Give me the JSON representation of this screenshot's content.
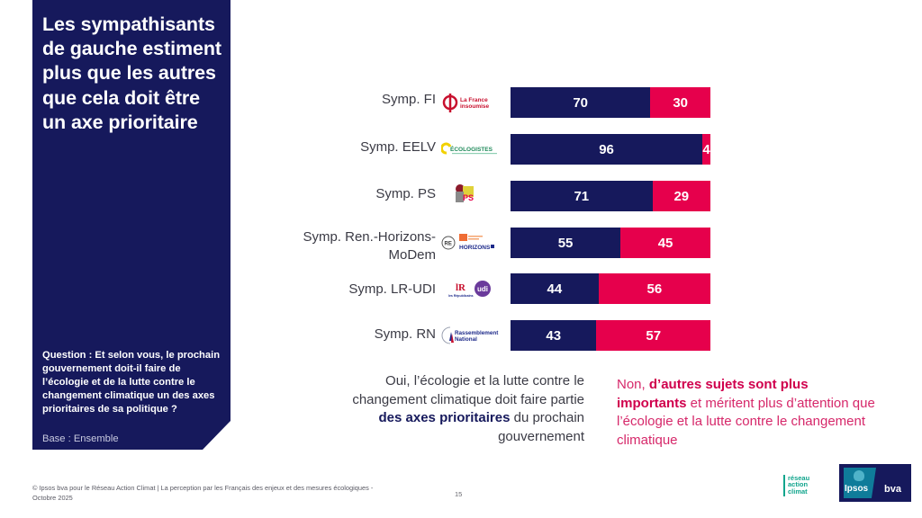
{
  "panel": {
    "title": "Les sympathisants de gauche estiment plus que les autres que cela doit être un axe prioritaire",
    "question": "Question : Et selon vous, le prochain gouvernement doit-il faire de l’écologie et de la lutte contre le changement climatique un des axes prioritaires de sa politique ?",
    "base": "Base : Ensemble"
  },
  "colors": {
    "navy": "#16195c",
    "pink": "#e6004c"
  },
  "chart_data": {
    "type": "bar",
    "orientation": "horizontal",
    "stacked": true,
    "title": "Les sympathisants de gauche estiment plus que les autres que cela doit être un axe prioritaire",
    "xlabel": "",
    "ylabel": "",
    "xlim": [
      0,
      100
    ],
    "grid": false,
    "categories": [
      "Symp. FI",
      "Symp. EELV",
      "Symp. PS",
      "Symp. Ren.-Horizons-MoDem",
      "Symp. LR-UDI",
      "Symp. RN"
    ],
    "category_logos": [
      "la-france-insoumise-logo",
      "les-ecologistes-logo",
      "ps-logo",
      "renaissance-horizons-modem-logo",
      "lr-udi-logo",
      "rassemblement-national-logo"
    ],
    "series": [
      {
        "name": "Oui, l’écologie et la lutte contre le changement climatique doit faire partie des axes prioritaires du prochain gouvernement",
        "color": "#16195c",
        "values": [
          70,
          96,
          71,
          55,
          44,
          43
        ]
      },
      {
        "name": "Non, d’autres sujets sont plus importants et méritent plus d’attention que l’écologie et la lutte contre le changement climatique",
        "color": "#e6004c",
        "values": [
          30,
          4,
          29,
          45,
          56,
          57
        ]
      }
    ],
    "legend_placement": "bottom"
  },
  "rows": [
    {
      "label": "Symp. FI",
      "logo_text": "La France insoumise"
    },
    {
      "label": "Symp. EELV",
      "logo_text": "LES ÉCOLOGISTES"
    },
    {
      "label": "Symp. PS",
      "logo_text": "PS"
    },
    {
      "label_line1": "Symp. Ren.-Horizons-",
      "label_line2": "MoDem",
      "logo_text": "RE HORIZONS"
    },
    {
      "label": "Symp. LR-UDI",
      "logo_text": "LR udi"
    },
    {
      "label": "Symp. RN",
      "logo_text": "Rassemblement National"
    }
  ],
  "legend": {
    "yes_prefix": "Oui, l’écologie et la lutte contre le changement climatique doit faire partie ",
    "yes_bold": "des axes prioritaires",
    "yes_suffix": " du prochain gouvernement",
    "no_prefix": "Non, ",
    "no_bold": "d’autres sujets sont plus importants",
    "no_suffix": " et méritent plus d’attention que l’écologie et la lutte contre le changement climatique"
  },
  "footer": {
    "copyright": "© Ipsos bva pour le Réseau Action Climat | La perception par les Français des enjeux et des mesures écologiques - Octobre 2025",
    "page_number": "15",
    "rac_logo_text": "réseau action climat",
    "ipsos_text": "Ipsos",
    "bva_text": "bva"
  }
}
